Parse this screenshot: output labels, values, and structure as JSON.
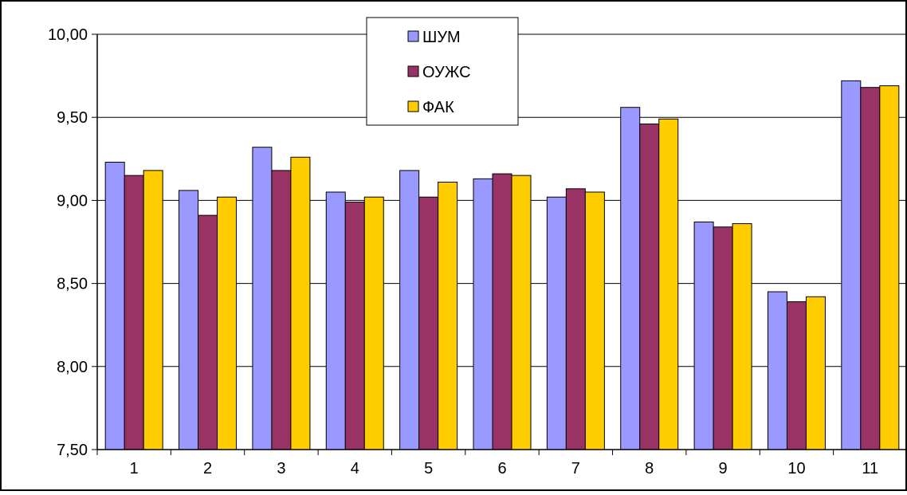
{
  "chart_data": {
    "type": "bar",
    "title": "",
    "xlabel": "",
    "ylabel": "",
    "categories": [
      "1",
      "2",
      "3",
      "4",
      "5",
      "6",
      "7",
      "8",
      "9",
      "10",
      "11"
    ],
    "ylim": [
      7.5,
      10.0
    ],
    "y_ticks": [
      "7,50",
      "8,00",
      "8,50",
      "9,00",
      "9,50",
      "10,00"
    ],
    "y_tick_values": [
      7.5,
      8.0,
      8.5,
      9.0,
      9.5,
      10.0
    ],
    "grid": true,
    "legend_position": "top-center",
    "series": [
      {
        "name": "ШУМ",
        "color": "#9999ff",
        "values": [
          9.23,
          9.06,
          9.32,
          9.05,
          9.18,
          9.13,
          9.02,
          9.56,
          8.87,
          8.45,
          9.72
        ]
      },
      {
        "name": "ОУЖС",
        "color": "#993366",
        "values": [
          9.15,
          8.91,
          9.18,
          8.99,
          9.02,
          9.16,
          9.07,
          9.46,
          8.84,
          8.39,
          9.68
        ]
      },
      {
        "name": "ФАК",
        "color": "#ffcc00",
        "values": [
          9.18,
          9.02,
          9.26,
          9.02,
          9.11,
          9.15,
          9.05,
          9.49,
          8.86,
          8.42,
          9.69
        ]
      }
    ]
  }
}
